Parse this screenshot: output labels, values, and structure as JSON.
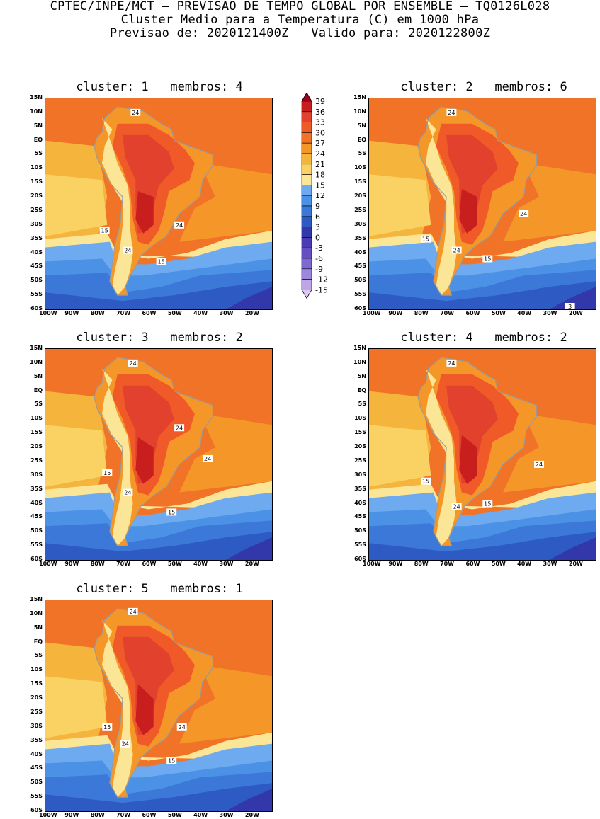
{
  "header": {
    "line1": "CPTEC/INPE/MCT – PREVISAO DE TEMPO GLOBAL POR ENSEMBLE – TQ0126L028",
    "line2": "Cluster Medio para a Temperatura (C) em 1000 hPa",
    "line3": "Previsao de: 2020121400Z   Valido para: 2020122800Z"
  },
  "axes": {
    "lat_labels": [
      "15N",
      "10N",
      "5N",
      "EQ",
      "5S",
      "10S",
      "15S",
      "20S",
      "25S",
      "30S",
      "35S",
      "40S",
      "45S",
      "50S",
      "55S",
      "60S"
    ],
    "lon_labels": [
      "100W",
      "90W",
      "80W",
      "70W",
      "60W",
      "50W",
      "40W",
      "30W",
      "20W"
    ]
  },
  "panels": [
    {
      "title": "cluster: 1   membros: 4",
      "contour_labels": [
        {
          "text": "24",
          "lon": -65,
          "lat": 10
        },
        {
          "text": "15",
          "lon": -77,
          "lat": -32
        },
        {
          "text": "24",
          "lon": -68,
          "lat": -39
        },
        {
          "text": "24",
          "lon": -48,
          "lat": -30
        },
        {
          "text": "15",
          "lon": -55,
          "lat": -43
        }
      ]
    },
    {
      "title": "cluster: 2   membros: 6",
      "contour_labels": [
        {
          "text": "24",
          "lon": -68,
          "lat": 10
        },
        {
          "text": "15",
          "lon": -78,
          "lat": -35
        },
        {
          "text": "24",
          "lon": -66,
          "lat": -39
        },
        {
          "text": "24",
          "lon": -40,
          "lat": -26
        },
        {
          "text": "15",
          "lon": -54,
          "lat": -42
        },
        {
          "text": "3",
          "lon": -22,
          "lat": -59
        }
      ]
    },
    {
      "title": "cluster: 3   membros: 2",
      "contour_labels": [
        {
          "text": "24",
          "lon": -66,
          "lat": 10
        },
        {
          "text": "15",
          "lon": -76,
          "lat": -29
        },
        {
          "text": "24",
          "lon": -68,
          "lat": -36
        },
        {
          "text": "24",
          "lon": -48,
          "lat": -13
        },
        {
          "text": "24",
          "lon": -37,
          "lat": -24
        },
        {
          "text": "15",
          "lon": -51,
          "lat": -43
        }
      ]
    },
    {
      "title": "cluster: 4   membros: 2",
      "contour_labels": [
        {
          "text": "24",
          "lon": -68,
          "lat": 10
        },
        {
          "text": "15",
          "lon": -78,
          "lat": -32
        },
        {
          "text": "24",
          "lon": -66,
          "lat": -41
        },
        {
          "text": "24",
          "lon": -34,
          "lat": -26
        },
        {
          "text": "15",
          "lon": -54,
          "lat": -40
        }
      ]
    },
    {
      "title": "cluster: 5   membros: 1",
      "contour_labels": [
        {
          "text": "24",
          "lon": -66,
          "lat": 11
        },
        {
          "text": "15",
          "lon": -76,
          "lat": -30
        },
        {
          "text": "24",
          "lon": -69,
          "lat": -36
        },
        {
          "text": "24",
          "lon": -47,
          "lat": -30
        },
        {
          "text": "15",
          "lon": -51,
          "lat": -42
        }
      ]
    }
  ],
  "colorbar": {
    "labels": [
      "39",
      "36",
      "33",
      "30",
      "27",
      "24",
      "21",
      "18",
      "15",
      "12",
      "9",
      "6",
      "3",
      "0",
      "-3",
      "-6",
      "-9",
      "-12",
      "-15"
    ],
    "colors": [
      "#a0001c",
      "#c81e1e",
      "#e1412d",
      "#f05a28",
      "#f07328",
      "#f59628",
      "#f5b43c",
      "#fad264",
      "#fae696",
      "#6eaaf0",
      "#4b91e6",
      "#3c78d7",
      "#2d5ac3",
      "#3238aa",
      "#4b3cb4",
      "#6450c3",
      "#7d69d2",
      "#9b87dc",
      "#bea5e6",
      "#dcc8f0"
    ]
  }
}
